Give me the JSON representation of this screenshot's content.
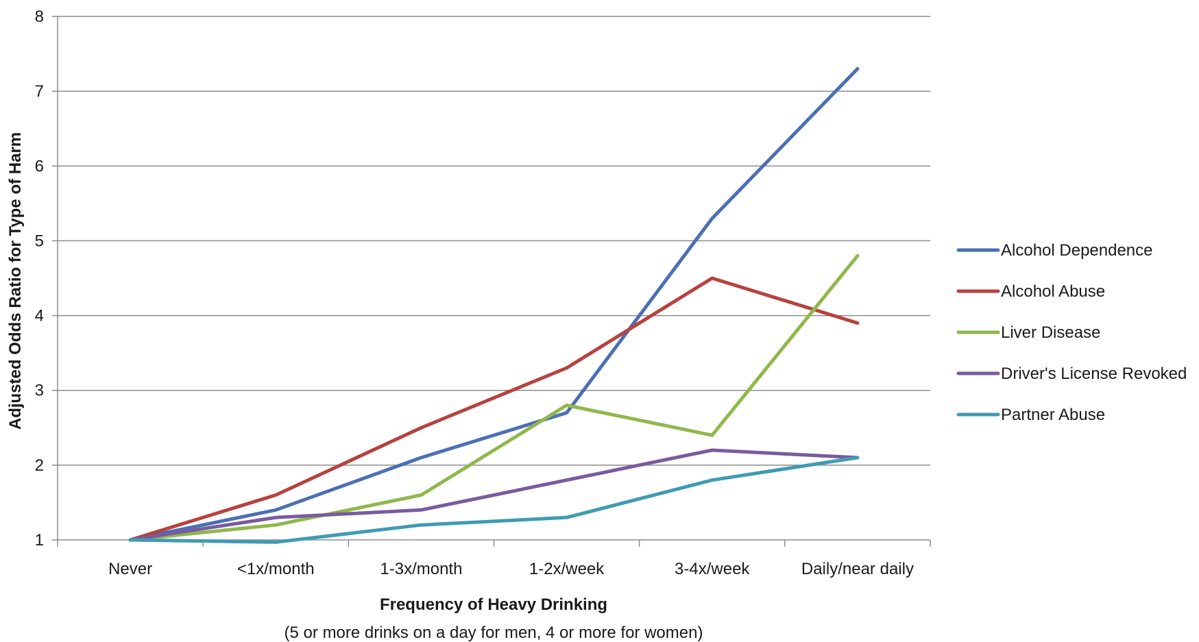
{
  "chart_data": {
    "type": "line",
    "categories": [
      "Never",
      "<1x/month",
      "1-3x/month",
      "1-2x/week",
      "3-4x/week",
      "Daily/near daily"
    ],
    "series": [
      {
        "name": "Alcohol Dependence",
        "color": "#4a6fb5",
        "values": [
          1.0,
          1.4,
          2.1,
          2.7,
          5.3,
          7.3
        ]
      },
      {
        "name": "Alcohol Abuse",
        "color": "#b8413e",
        "values": [
          1.0,
          1.6,
          2.5,
          3.3,
          4.5,
          3.9
        ]
      },
      {
        "name": "Liver Disease",
        "color": "#8fb84a",
        "values": [
          1.0,
          1.2,
          1.6,
          2.8,
          2.4,
          4.8
        ]
      },
      {
        "name": "Driver's License Revoked",
        "color": "#7a5aa0",
        "values": [
          1.0,
          1.3,
          1.4,
          1.8,
          2.2,
          2.1
        ]
      },
      {
        "name": "Partner Abuse",
        "color": "#3f9bb3",
        "values": [
          1.0,
          0.97,
          1.2,
          1.3,
          1.8,
          2.1
        ]
      }
    ],
    "xlabel": "Frequency of Heavy Drinking",
    "xlabel_note": "(5 or more drinks on a day for men, 4 or more for women)",
    "ylabel": "Adjusted Odds Ratio for Type of Harm",
    "ylim": [
      1,
      8
    ],
    "yticks": [
      1,
      2,
      3,
      4,
      5,
      6,
      7,
      8
    ],
    "grid": true,
    "legend_position": "right"
  }
}
